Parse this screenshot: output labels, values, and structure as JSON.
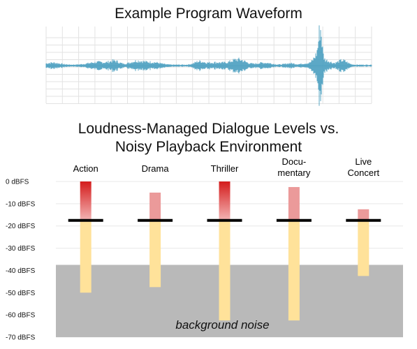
{
  "waveform": {
    "title": "Example Program Waveform",
    "color": "#4a9fc0",
    "bursts": [
      {
        "t": 0.02,
        "w": 0.03,
        "a": 0.07
      },
      {
        "t": 0.16,
        "w": 0.04,
        "a": 0.09
      },
      {
        "t": 0.21,
        "w": 0.02,
        "a": 0.12
      },
      {
        "t": 0.28,
        "w": 0.03,
        "a": 0.13
      },
      {
        "t": 0.33,
        "w": 0.03,
        "a": 0.08
      },
      {
        "t": 0.47,
        "w": 0.02,
        "a": 0.1
      },
      {
        "t": 0.52,
        "w": 0.04,
        "a": 0.08
      },
      {
        "t": 0.59,
        "w": 0.03,
        "a": 0.18
      },
      {
        "t": 0.67,
        "w": 0.03,
        "a": 0.07
      },
      {
        "t": 0.75,
        "w": 0.02,
        "a": 0.05
      },
      {
        "t": 0.8,
        "w": 0.02,
        "a": 0.05
      },
      {
        "t": 0.8325,
        "w": 0.015,
        "a": 0.32
      },
      {
        "t": 0.8425,
        "w": 0.007,
        "a": 1.0
      },
      {
        "t": 0.86,
        "w": 0.02,
        "a": 0.15
      },
      {
        "t": 0.91,
        "w": 0.02,
        "a": 0.15
      }
    ]
  },
  "chart_data": {
    "type": "bar",
    "title_lines": [
      "Loudness-Managed Dialogue Levels vs.",
      "Noisy Playback Environment"
    ],
    "categories": [
      [
        "Action"
      ],
      [
        "Drama"
      ],
      [
        "Thriller"
      ],
      [
        "Docu-",
        "mentary"
      ],
      [
        "Live",
        "Concert"
      ]
    ],
    "ylim": [
      -70,
      0
    ],
    "yticks": [
      0,
      -10,
      -20,
      -30,
      -40,
      -50,
      -60,
      -70
    ],
    "ytick_suffix": " dBFS",
    "dialogue_level": -17.5,
    "peaks": [
      0,
      -5,
      0,
      -2.5,
      -12.5
    ],
    "bottoms": [
      -50,
      -47.5,
      -62.5,
      -62.5,
      -42.5
    ],
    "noise_floor": -37.5,
    "noise_label": "background noise",
    "colors": {
      "peak_top": "#d41c1c",
      "peak_bottom": "#f3b5b5",
      "peak_solid": "#eb9a9a",
      "low": "#ffe29a",
      "noise": "#b9b9b9",
      "dialogue": "#000000"
    }
  }
}
